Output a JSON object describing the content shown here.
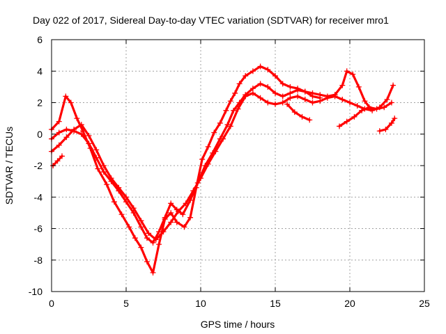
{
  "chart_data": {
    "type": "scatter",
    "title": "Day 022 of 2017, Sidereal Day-to-day VTEC variation (SDTVAR) for receiver mro1",
    "xlabel": "GPS time / hours",
    "ylabel": "SDTVAR / TECUs",
    "xlim": [
      0,
      25
    ],
    "ylim": [
      -10,
      6
    ],
    "xticks": [
      0,
      5,
      10,
      15,
      20,
      25
    ],
    "yticks": [
      -10,
      -8,
      -6,
      -4,
      -2,
      0,
      2,
      4,
      6
    ],
    "grid": true,
    "marker": "+",
    "color": "#ff0000",
    "series": [
      {
        "x": [
          0.0,
          0.5,
          0.95,
          1.3,
          1.7,
          2.1,
          2.6,
          3.1,
          3.7,
          4.2,
          4.7,
          5.2,
          5.6,
          6.0,
          6.4,
          6.8,
          7.2,
          7.6,
          8.0,
          8.4,
          8.9,
          9.3,
          9.7,
          10.1,
          10.5,
          10.9,
          11.3,
          11.7,
          12.0,
          12.3,
          12.6,
          13.0,
          13.5,
          14.0,
          14.5,
          15.0,
          15.5,
          16.0,
          16.5,
          17.0,
          17.5,
          18.0,
          18.5,
          19.0,
          19.5,
          19.8,
          20.2,
          20.6,
          21.0,
          21.4
        ],
        "y": [
          0.3,
          0.8,
          2.4,
          2.0,
          1.0,
          0.2,
          -0.9,
          -2.2,
          -3.2,
          -4.3,
          -5.1,
          -5.9,
          -6.6,
          -7.2,
          -8.1,
          -8.8,
          -7.0,
          -5.4,
          -5.0,
          -5.6,
          -5.9,
          -5.3,
          -3.4,
          -1.6,
          -0.8,
          0.1,
          0.7,
          1.5,
          2.1,
          2.6,
          3.2,
          3.7,
          4.0,
          4.3,
          4.1,
          3.7,
          3.2,
          3.0,
          2.9,
          2.7,
          2.6,
          2.5,
          2.4,
          2.5,
          3.1,
          4.0,
          3.8,
          3.0,
          2.1,
          1.6
        ]
      },
      {
        "x": [
          0.0,
          0.5,
          1.0,
          1.5,
          2.0,
          2.5,
          3.0,
          3.5,
          4.0,
          4.5,
          5.0,
          5.5,
          6.0,
          6.4,
          6.8,
          7.2,
          7.6,
          8.0,
          8.4,
          8.8,
          9.3,
          9.8,
          10.3,
          10.8,
          11.3,
          11.8,
          12.2,
          12.6,
          13.0,
          13.5,
          14.0,
          14.5,
          15.0,
          15.5,
          16.0,
          16.5,
          17.0,
          17.5,
          18.0
        ],
        "y": [
          -0.3,
          0.1,
          0.3,
          0.2,
          0.0,
          -0.6,
          -1.5,
          -2.4,
          -3.0,
          -3.6,
          -4.3,
          -5.0,
          -5.9,
          -6.6,
          -6.9,
          -6.2,
          -5.3,
          -4.4,
          -4.8,
          -5.1,
          -4.2,
          -3.1,
          -2.0,
          -1.2,
          -0.3,
          0.6,
          1.5,
          2.0,
          2.5,
          2.9,
          3.2,
          3.0,
          2.6,
          2.4,
          2.6,
          2.8,
          2.7,
          2.4,
          2.3
        ]
      },
      {
        "x": [
          0.0,
          0.5,
          1.0,
          1.5,
          2.0,
          2.5,
          3.0,
          3.5,
          4.0,
          4.5,
          5.0,
          5.5,
          6.0,
          6.5,
          7.0,
          7.5,
          8.0,
          8.5,
          9.0,
          9.5,
          10.0,
          10.5,
          11.0,
          11.5,
          12.0,
          12.5,
          13.0,
          13.5,
          14.0,
          14.5,
          15.0,
          15.5,
          16.0,
          16.5,
          17.0,
          17.5,
          18.0,
          18.5,
          19.0,
          19.5,
          20.0,
          20.5,
          21.0,
          21.5,
          22.0,
          22.5,
          22.9
        ],
        "y": [
          -1.1,
          -0.7,
          -0.2,
          0.3,
          0.6,
          -0.1,
          -1.0,
          -2.0,
          -2.8,
          -3.4,
          -4.0,
          -4.7,
          -5.5,
          -6.3,
          -6.7,
          -6.2,
          -5.6,
          -4.9,
          -4.4,
          -3.6,
          -2.8,
          -1.9,
          -1.1,
          -0.3,
          0.5,
          1.6,
          2.4,
          2.6,
          2.3,
          2.0,
          1.9,
          2.0,
          2.3,
          2.4,
          2.2,
          2.0,
          2.1,
          2.3,
          2.4,
          2.2,
          2.0,
          1.8,
          1.6,
          1.5,
          1.7,
          2.2,
          3.1
        ]
      },
      {
        "x": [
          0.1,
          0.4,
          0.7
        ],
        "y": [
          -2.0,
          -1.7,
          -1.4
        ]
      },
      {
        "x": [
          19.3,
          19.8,
          20.3,
          20.8,
          21.3,
          21.8,
          22.3,
          22.8
        ],
        "y": [
          0.5,
          0.8,
          1.1,
          1.5,
          1.7,
          1.6,
          1.7,
          2.0
        ]
      },
      {
        "x": [
          22.0,
          22.4,
          22.8,
          23.0
        ],
        "y": [
          0.2,
          0.3,
          0.7,
          1.0
        ]
      },
      {
        "x": [
          15.8,
          16.3,
          16.8,
          17.3
        ],
        "y": [
          1.9,
          1.4,
          1.1,
          0.9
        ]
      }
    ]
  }
}
